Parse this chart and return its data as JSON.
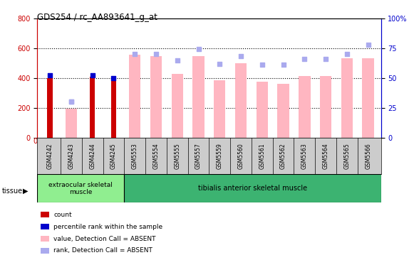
{
  "title": "GDS254 / rc_AA893641_g_at",
  "samples": [
    "GSM4242",
    "GSM4243",
    "GSM4244",
    "GSM4245",
    "GSM5553",
    "GSM5554",
    "GSM5555",
    "GSM5557",
    "GSM5559",
    "GSM5560",
    "GSM5561",
    "GSM5562",
    "GSM5563",
    "GSM5564",
    "GSM5565",
    "GSM5566"
  ],
  "count_values": [
    400,
    0,
    410,
    395,
    0,
    0,
    0,
    0,
    0,
    0,
    0,
    0,
    0,
    0,
    0,
    0
  ],
  "percentile_values": [
    52,
    0,
    52,
    50,
    0,
    0,
    0,
    0,
    0,
    0,
    0,
    0,
    0,
    0,
    0,
    0
  ],
  "percentile_absent_values": [
    0,
    30,
    0,
    0,
    0,
    0,
    0,
    0,
    0,
    0,
    0,
    0,
    0,
    0,
    0,
    0
  ],
  "value_absent": [
    0,
    195,
    0,
    0,
    558,
    545,
    428,
    548,
    385,
    498,
    375,
    360,
    415,
    415,
    530,
    530
  ],
  "rank_absent": [
    0,
    30,
    0,
    0,
    70,
    70,
    65,
    74,
    62,
    68,
    61,
    61,
    66,
    66,
    70,
    78
  ],
  "ylim_left": [
    0,
    800
  ],
  "ylim_right": [
    0,
    100
  ],
  "yticks_left": [
    0,
    200,
    400,
    600,
    800
  ],
  "yticks_right": [
    0,
    25,
    50,
    75,
    100
  ],
  "tissue_groups": [
    {
      "label": "extraocular skeletal\nmuscle",
      "start": 0,
      "end": 4,
      "color": "#90EE90"
    },
    {
      "label": "tibialis anterior skeletal muscle",
      "start": 4,
      "end": 16,
      "color": "#3CB371"
    }
  ],
  "count_color": "#CC0000",
  "percentile_color": "#0000CC",
  "value_absent_color": "#FFB6C1",
  "rank_absent_color": "#AAAAEE",
  "grid_color": "#000000",
  "bg_color": "#FFFFFF",
  "left_axis_color": "#CC0000",
  "right_axis_color": "#0000CC",
  "tick_area_color": "#CCCCCC"
}
